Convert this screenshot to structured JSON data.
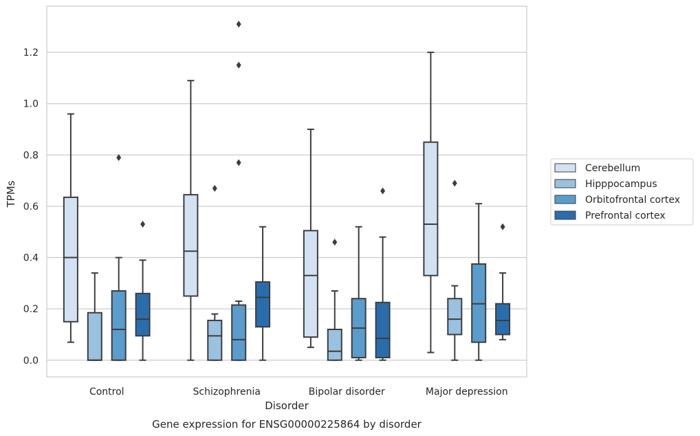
{
  "chart_data": {
    "type": "box",
    "title": "Gene expression for ENSG00000225864 by disorder",
    "xlabel": "Disorder",
    "ylabel": "TPMs",
    "ylim": [
      -0.065,
      1.38
    ],
    "yticks": [
      "0.0",
      "0.2",
      "0.4",
      "0.6",
      "0.8",
      "1.0",
      "1.2"
    ],
    "grid": "horizontal",
    "legend_position": "right",
    "categories": [
      "Control",
      "Schizophrenia",
      "Bipolar disorder",
      "Major depression"
    ],
    "series": [
      {
        "name": "Cerebellum",
        "color": "#d2e2f2",
        "boxes": [
          {
            "whisker_low": 0.07,
            "q1": 0.15,
            "median": 0.4,
            "q3": 0.635,
            "whisker_high": 0.96,
            "outliers": []
          },
          {
            "whisker_low": 0.0,
            "q1": 0.25,
            "median": 0.425,
            "q3": 0.645,
            "whisker_high": 1.09,
            "outliers": []
          },
          {
            "whisker_low": 0.05,
            "q1": 0.09,
            "median": 0.33,
            "q3": 0.505,
            "whisker_high": 0.9,
            "outliers": []
          },
          {
            "whisker_low": 0.03,
            "q1": 0.33,
            "median": 0.53,
            "q3": 0.85,
            "whisker_high": 1.2,
            "outliers": []
          }
        ]
      },
      {
        "name": "Hipppocampus",
        "color": "#9ac1df",
        "boxes": [
          {
            "whisker_low": 0.0,
            "q1": 0.0,
            "median": 0.0,
            "q3": 0.185,
            "whisker_high": 0.34,
            "outliers": []
          },
          {
            "whisker_low": 0.0,
            "q1": 0.0,
            "median": 0.095,
            "q3": 0.155,
            "whisker_high": 0.18,
            "outliers": [
              0.67
            ]
          },
          {
            "whisker_low": 0.0,
            "q1": 0.0,
            "median": 0.035,
            "q3": 0.12,
            "whisker_high": 0.27,
            "outliers": [
              0.46
            ]
          },
          {
            "whisker_low": 0.0,
            "q1": 0.1,
            "median": 0.16,
            "q3": 0.24,
            "whisker_high": 0.29,
            "outliers": [
              0.69
            ]
          }
        ]
      },
      {
        "name": "Orbitofrontal cortex",
        "color": "#5a9ccc",
        "boxes": [
          {
            "whisker_low": 0.0,
            "q1": 0.0,
            "median": 0.12,
            "q3": 0.27,
            "whisker_high": 0.4,
            "outliers": [
              0.79
            ]
          },
          {
            "whisker_low": 0.0,
            "q1": 0.0,
            "median": 0.08,
            "q3": 0.215,
            "whisker_high": 0.23,
            "outliers": [
              0.77,
              1.15,
              1.31
            ]
          },
          {
            "whisker_low": 0.0,
            "q1": 0.01,
            "median": 0.125,
            "q3": 0.24,
            "whisker_high": 0.52,
            "outliers": []
          },
          {
            "whisker_low": 0.0,
            "q1": 0.07,
            "median": 0.22,
            "q3": 0.375,
            "whisker_high": 0.61,
            "outliers": []
          }
        ]
      },
      {
        "name": "Prefrontal cortex",
        "color": "#2a6dad",
        "boxes": [
          {
            "whisker_low": 0.0,
            "q1": 0.095,
            "median": 0.16,
            "q3": 0.26,
            "whisker_high": 0.39,
            "outliers": [
              0.53
            ]
          },
          {
            "whisker_low": 0.0,
            "q1": 0.13,
            "median": 0.245,
            "q3": 0.305,
            "whisker_high": 0.52,
            "outliers": []
          },
          {
            "whisker_low": 0.0,
            "q1": 0.01,
            "median": 0.085,
            "q3": 0.225,
            "whisker_high": 0.48,
            "outliers": [
              0.66
            ]
          },
          {
            "whisker_low": 0.08,
            "q1": 0.1,
            "median": 0.155,
            "q3": 0.22,
            "whisker_high": 0.34,
            "outliers": [
              0.52
            ]
          }
        ]
      }
    ]
  }
}
